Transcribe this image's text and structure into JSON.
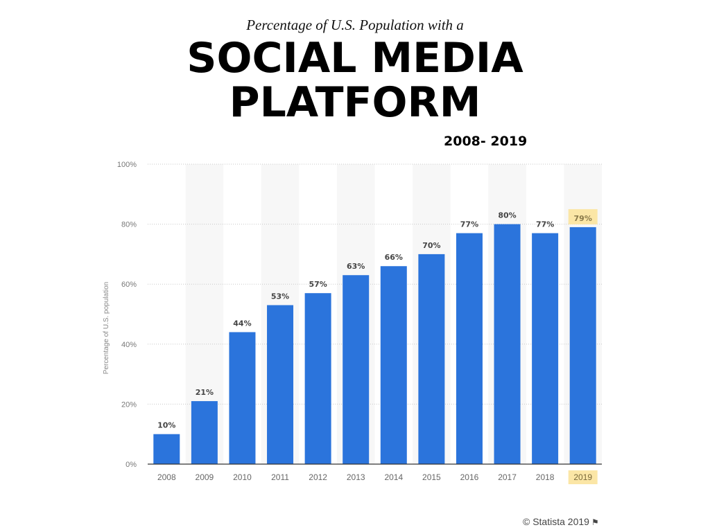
{
  "header": {
    "subtitle": "Percentage of U.S. Population with a",
    "title_line1": "SOCIAL MEDIA",
    "title_line2": "PLATFORM",
    "year_range": "2008- 2019"
  },
  "footer": {
    "credit": "© Statista 2019",
    "flag_icon": "flag-icon"
  },
  "colors": {
    "bar": "#2b74dc",
    "highlight": "#fbe6a6",
    "grid": "#c8c8c8",
    "band": "#f7f7f7"
  },
  "chart_data": {
    "type": "bar",
    "categories": [
      "2008",
      "2009",
      "2010",
      "2011",
      "2012",
      "2013",
      "2014",
      "2015",
      "2016",
      "2017",
      "2018",
      "2019"
    ],
    "values": [
      10,
      21,
      44,
      53,
      57,
      63,
      66,
      70,
      77,
      80,
      77,
      79
    ],
    "value_labels": [
      "10%",
      "21%",
      "44%",
      "53%",
      "57%",
      "63%",
      "66%",
      "70%",
      "77%",
      "80%",
      "77%",
      "79%"
    ],
    "ylabel": "Percentage of U.S. population",
    "ylim": [
      0,
      100
    ],
    "yticks": [
      0,
      20,
      40,
      60,
      80,
      100
    ],
    "ytick_labels": [
      "0%",
      "20%",
      "40%",
      "60%",
      "80%",
      "100%"
    ],
    "highlighted_category": "2019",
    "grid": true
  }
}
